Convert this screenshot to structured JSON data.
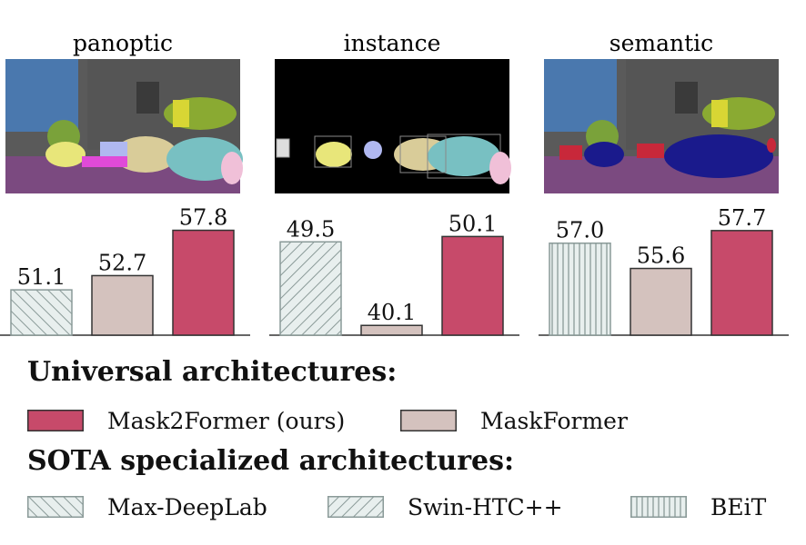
{
  "chart_data": [
    {
      "type": "bar",
      "title": "panoptic",
      "categories": [
        "Max-DeepLab",
        "MaskFormer",
        "Mask2Former (ours)"
      ],
      "values": [
        51.1,
        52.7,
        57.8
      ],
      "labels": [
        "51.1",
        "52.7",
        "57.8"
      ],
      "ylim": [
        46,
        60
      ]
    },
    {
      "type": "bar",
      "title": "instance",
      "categories": [
        "Swin-HTC++",
        "MaskFormer",
        "Mask2Former (ours)"
      ],
      "values": [
        49.5,
        40.1,
        50.1
      ],
      "labels": [
        "49.5",
        "40.1",
        "50.1"
      ],
      "ylim": [
        39,
        53
      ]
    },
    {
      "type": "bar",
      "title": "semantic",
      "categories": [
        "BEiT",
        "MaskFormer",
        "Mask2Former (ours)"
      ],
      "values": [
        57.0,
        55.6,
        57.7
      ],
      "labels": [
        "57.0",
        "55.6",
        "57.7"
      ],
      "ylim": [
        51.9,
        58.8
      ]
    }
  ],
  "colors": {
    "Mask2Former (ours)": "#c74a6a",
    "MaskFormer": "#d4c2be",
    "hatch_bg": "#e8efee",
    "hatch_line": "#8a9a98"
  },
  "legend": {
    "universal_heading": "Universal architectures:",
    "specialized_heading": "SOTA specialized architectures:",
    "items": [
      {
        "label": "Mask2Former (ours)",
        "style": "fill-red"
      },
      {
        "label": "MaskFormer",
        "style": "fill-beige"
      },
      {
        "label": "Max-DeepLab",
        "style": "hatch-backslash"
      },
      {
        "label": "Swin-HTC++",
        "style": "hatch-slash"
      },
      {
        "label": "BEiT",
        "style": "hatch-vertical"
      }
    ]
  }
}
